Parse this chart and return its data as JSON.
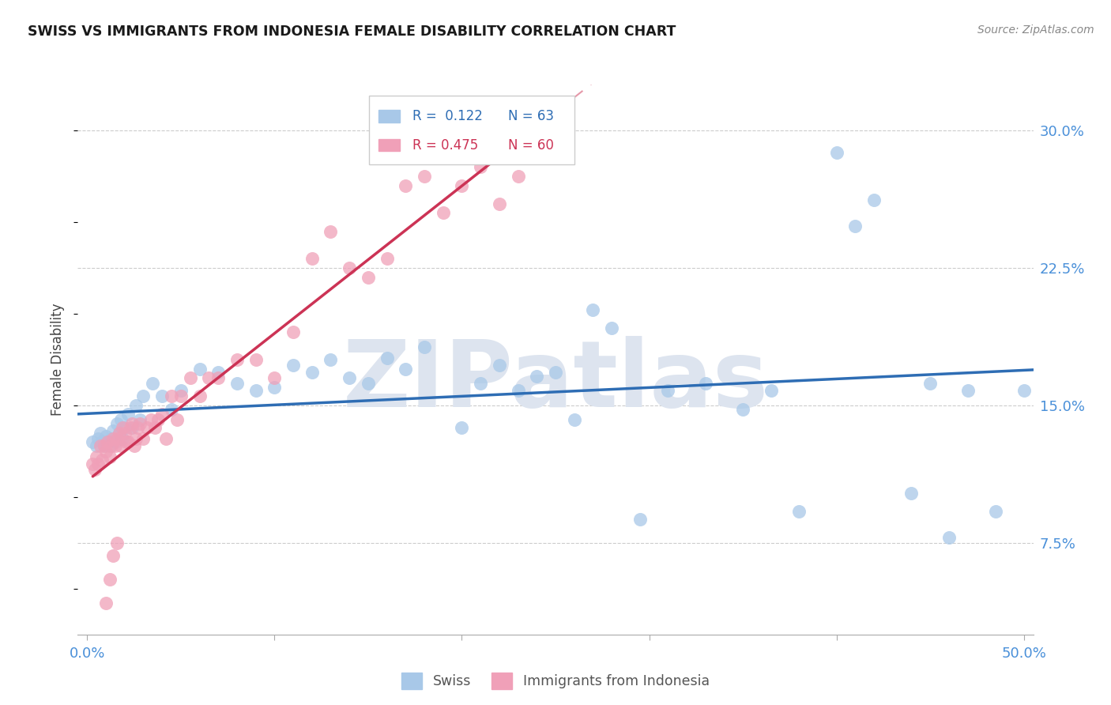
{
  "title": "SWISS VS IMMIGRANTS FROM INDONESIA FEMALE DISABILITY CORRELATION CHART",
  "source": "Source: ZipAtlas.com",
  "ylabel": "Female Disability",
  "xlim": [
    -0.005,
    0.505
  ],
  "ylim": [
    0.025,
    0.325
  ],
  "ytick_vals": [
    0.075,
    0.15,
    0.225,
    0.3
  ],
  "ytick_labels": [
    "7.5%",
    "15.0%",
    "22.5%",
    "30.0%"
  ],
  "xtick_vals": [
    0.0,
    0.1,
    0.2,
    0.3,
    0.4,
    0.5
  ],
  "xtick_labels": [
    "0.0%",
    "",
    "",
    "",
    "",
    "50.0%"
  ],
  "grid_color": "#cccccc",
  "bg_color": "#ffffff",
  "swiss_color": "#a8c8e8",
  "indonesia_color": "#f0a0b8",
  "swiss_line_color": "#2e6db4",
  "indonesia_line_color": "#cc3355",
  "axis_tick_color": "#4a90d9",
  "swiss_R": 0.122,
  "swiss_N": 63,
  "indonesia_R": 0.475,
  "indonesia_N": 60,
  "watermark": "ZIPatlas",
  "watermark_color": "#dde4ef",
  "swiss_x": [
    0.003,
    0.005,
    0.006,
    0.007,
    0.008,
    0.009,
    0.01,
    0.011,
    0.012,
    0.013,
    0.014,
    0.015,
    0.016,
    0.017,
    0.018,
    0.019,
    0.02,
    0.022,
    0.024,
    0.026,
    0.028,
    0.03,
    0.035,
    0.04,
    0.045,
    0.05,
    0.06,
    0.07,
    0.08,
    0.09,
    0.1,
    0.11,
    0.12,
    0.13,
    0.14,
    0.15,
    0.16,
    0.17,
    0.18,
    0.2,
    0.21,
    0.22,
    0.23,
    0.24,
    0.25,
    0.26,
    0.27,
    0.28,
    0.295,
    0.31,
    0.33,
    0.35,
    0.365,
    0.38,
    0.4,
    0.41,
    0.42,
    0.44,
    0.45,
    0.46,
    0.47,
    0.485,
    0.5
  ],
  "swiss_y": [
    0.13,
    0.128,
    0.132,
    0.135,
    0.13,
    0.128,
    0.133,
    0.13,
    0.128,
    0.132,
    0.136,
    0.13,
    0.14,
    0.135,
    0.142,
    0.132,
    0.138,
    0.145,
    0.138,
    0.15,
    0.142,
    0.155,
    0.162,
    0.155,
    0.148,
    0.158,
    0.17,
    0.168,
    0.162,
    0.158,
    0.16,
    0.172,
    0.168,
    0.175,
    0.165,
    0.162,
    0.176,
    0.17,
    0.182,
    0.138,
    0.162,
    0.172,
    0.158,
    0.166,
    0.168,
    0.142,
    0.202,
    0.192,
    0.088,
    0.158,
    0.162,
    0.148,
    0.158,
    0.092,
    0.288,
    0.248,
    0.262,
    0.102,
    0.162,
    0.078,
    0.158,
    0.092,
    0.158
  ],
  "indonesia_x": [
    0.003,
    0.004,
    0.005,
    0.006,
    0.007,
    0.008,
    0.009,
    0.01,
    0.011,
    0.012,
    0.013,
    0.014,
    0.015,
    0.016,
    0.017,
    0.018,
    0.019,
    0.02,
    0.021,
    0.022,
    0.023,
    0.024,
    0.025,
    0.026,
    0.027,
    0.028,
    0.03,
    0.032,
    0.034,
    0.036,
    0.038,
    0.04,
    0.042,
    0.045,
    0.048,
    0.05,
    0.055,
    0.06,
    0.065,
    0.07,
    0.08,
    0.09,
    0.1,
    0.11,
    0.12,
    0.13,
    0.14,
    0.15,
    0.16,
    0.17,
    0.18,
    0.19,
    0.2,
    0.21,
    0.22,
    0.23,
    0.01,
    0.012,
    0.014,
    0.016
  ],
  "indonesia_y": [
    0.118,
    0.115,
    0.122,
    0.118,
    0.128,
    0.12,
    0.128,
    0.125,
    0.13,
    0.122,
    0.128,
    0.132,
    0.128,
    0.132,
    0.135,
    0.128,
    0.138,
    0.135,
    0.13,
    0.13,
    0.138,
    0.14,
    0.128,
    0.132,
    0.138,
    0.14,
    0.132,
    0.138,
    0.142,
    0.138,
    0.142,
    0.145,
    0.132,
    0.155,
    0.142,
    0.155,
    0.165,
    0.155,
    0.165,
    0.165,
    0.175,
    0.175,
    0.165,
    0.19,
    0.23,
    0.245,
    0.225,
    0.22,
    0.23,
    0.27,
    0.275,
    0.255,
    0.27,
    0.28,
    0.26,
    0.275,
    0.042,
    0.055,
    0.068,
    0.075
  ]
}
